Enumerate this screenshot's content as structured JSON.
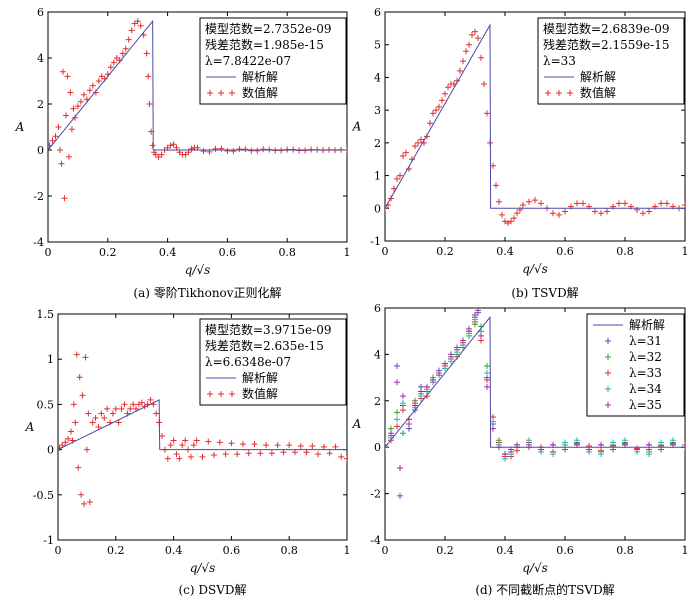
{
  "chart_data": [
    {
      "type": "line",
      "caption": "(a)  零阶Tikhonov正则化解",
      "xlabel": "q/√s",
      "ylabel": "A",
      "xlim": [
        0,
        1
      ],
      "ylim": [
        -4,
        6
      ],
      "xticks": [
        "0",
        "0.2",
        "0.4",
        "0.6",
        "0.8",
        "1"
      ],
      "yticks": [
        "-4",
        "-2",
        "0",
        "2",
        "4",
        "6"
      ],
      "legend": {
        "placement": "top-right",
        "text_lines": [
          "模型范数=2.7352e-09",
          "残差范数=1.985e-15",
          "λ=7.8422e-07"
        ],
        "entries": [
          {
            "label": "解析解",
            "marker": "line",
            "color": "#4a4aa8"
          },
          {
            "label": "数值解",
            "marker": "+",
            "color": "#e03030"
          }
        ]
      },
      "analytic": {
        "x": [
          0,
          0.35,
          0.352,
          1
        ],
        "y": [
          0,
          5.6,
          0,
          0
        ]
      },
      "numerical": {
        "x": [
          0.005,
          0.015,
          0.025,
          0.035,
          0.04,
          0.045,
          0.05,
          0.055,
          0.06,
          0.065,
          0.07,
          0.075,
          0.08,
          0.085,
          0.09,
          0.1,
          0.11,
          0.12,
          0.13,
          0.14,
          0.15,
          0.16,
          0.17,
          0.18,
          0.19,
          0.2,
          0.21,
          0.22,
          0.23,
          0.24,
          0.25,
          0.26,
          0.27,
          0.28,
          0.29,
          0.3,
          0.31,
          0.32,
          0.33,
          0.335,
          0.34,
          0.345,
          0.35,
          0.355,
          0.36,
          0.37,
          0.38,
          0.39,
          0.4,
          0.41,
          0.42,
          0.43,
          0.44,
          0.45,
          0.46,
          0.47,
          0.48,
          0.49,
          0.5,
          0.52,
          0.54,
          0.56,
          0.58,
          0.6,
          0.62,
          0.64,
          0.66,
          0.68,
          0.7,
          0.72,
          0.74,
          0.76,
          0.78,
          0.8,
          0.82,
          0.84,
          0.86,
          0.88,
          0.9,
          0.92,
          0.94,
          0.96,
          0.98,
          1.0
        ],
        "y": [
          0.2,
          0.4,
          0.6,
          1.0,
          0.0,
          -0.6,
          3.4,
          -2.1,
          1.5,
          3.2,
          -0.3,
          2.5,
          0.9,
          1.8,
          1.4,
          1.9,
          2.1,
          2.4,
          2.2,
          2.6,
          2.8,
          2.5,
          3.0,
          3.2,
          3.1,
          3.3,
          3.6,
          3.8,
          4.0,
          3.9,
          4.2,
          4.4,
          4.8,
          5.2,
          5.5,
          5.6,
          5.4,
          5.0,
          4.2,
          3.2,
          2.0,
          0.8,
          0.2,
          -0.1,
          -0.2,
          -0.3,
          -0.2,
          0.0,
          0.1,
          0.2,
          0.25,
          0.1,
          -0.1,
          -0.2,
          -0.2,
          -0.1,
          0.05,
          0.1,
          0.1,
          -0.05,
          -0.08,
          0.05,
          0.06,
          -0.04,
          -0.05,
          0.04,
          0.03,
          -0.03,
          -0.03,
          0.03,
          0.02,
          -0.02,
          -0.02,
          0.02,
          0.02,
          -0.02,
          -0.02,
          0.02,
          0.01,
          -0.01,
          0.01,
          -0.01,
          0.01,
          0.0
        ]
      }
    },
    {
      "type": "line",
      "caption": "(b)  TSVD解",
      "xlabel": "q/√s",
      "ylabel": "A",
      "xlim": [
        0,
        1
      ],
      "ylim": [
        -1,
        6
      ],
      "xticks": [
        "0",
        "0.2",
        "0.4",
        "0.6",
        "0.8",
        "1"
      ],
      "yticks": [
        "-1",
        "0",
        "1",
        "2",
        "3",
        "4",
        "5",
        "6"
      ],
      "legend": {
        "placement": "top-right",
        "text_lines": [
          "模型范数=2.6839e-09",
          "残差范数=2.1559e-15",
          "λ=33"
        ],
        "entries": [
          {
            "label": "解析解",
            "marker": "line",
            "color": "#4a4aa8"
          },
          {
            "label": "数值解",
            "marker": "+",
            "color": "#e03030"
          }
        ]
      },
      "analytic": {
        "x": [
          0,
          0.35,
          0.352,
          1
        ],
        "y": [
          0,
          5.6,
          0,
          0
        ]
      },
      "numerical": {
        "x": [
          0.0,
          0.01,
          0.02,
          0.03,
          0.04,
          0.05,
          0.06,
          0.07,
          0.08,
          0.09,
          0.1,
          0.11,
          0.12,
          0.13,
          0.14,
          0.15,
          0.16,
          0.17,
          0.18,
          0.19,
          0.2,
          0.21,
          0.22,
          0.23,
          0.24,
          0.25,
          0.26,
          0.27,
          0.28,
          0.29,
          0.3,
          0.31,
          0.32,
          0.33,
          0.34,
          0.35,
          0.36,
          0.37,
          0.38,
          0.39,
          0.4,
          0.41,
          0.42,
          0.43,
          0.44,
          0.45,
          0.46,
          0.48,
          0.5,
          0.52,
          0.54,
          0.56,
          0.58,
          0.6,
          0.62,
          0.64,
          0.66,
          0.68,
          0.7,
          0.72,
          0.74,
          0.76,
          0.78,
          0.8,
          0.82,
          0.84,
          0.86,
          0.88,
          0.9,
          0.92,
          0.94,
          0.96,
          0.98,
          1.0
        ],
        "y": [
          0.0,
          0.1,
          0.3,
          0.6,
          0.9,
          1.0,
          1.6,
          1.7,
          1.2,
          1.5,
          1.9,
          2.0,
          2.1,
          2.0,
          2.2,
          2.6,
          2.9,
          3.0,
          3.1,
          3.3,
          3.5,
          3.7,
          3.8,
          3.8,
          3.9,
          4.2,
          4.5,
          4.8,
          5.0,
          5.3,
          5.4,
          5.2,
          4.6,
          3.8,
          2.9,
          2.0,
          1.3,
          0.7,
          0.2,
          -0.2,
          -0.4,
          -0.45,
          -0.4,
          -0.3,
          -0.15,
          -0.05,
          0.1,
          0.2,
          0.25,
          0.15,
          0.0,
          -0.15,
          -0.2,
          -0.1,
          0.05,
          0.15,
          0.15,
          0.05,
          -0.1,
          -0.15,
          -0.1,
          0.05,
          0.15,
          0.15,
          0.05,
          -0.05,
          -0.15,
          -0.1,
          0.05,
          0.15,
          0.15,
          0.05,
          0.0,
          0.1
        ]
      }
    },
    {
      "type": "line",
      "caption": "(c)  DSVD解",
      "xlabel": "q/√s",
      "ylabel": "A",
      "xlim": [
        0,
        1
      ],
      "ylim": [
        -1,
        1.5
      ],
      "xticks": [
        "0",
        "0.2",
        "0.4",
        "0.6",
        "0.8",
        "1"
      ],
      "yticks": [
        "-1",
        "-0.5",
        "0",
        "0.5",
        "1",
        "1.5"
      ],
      "legend": {
        "placement": "top-right",
        "text_lines": [
          "模型范数=3.9715e-09",
          "残差范数=2.635e-15",
          "λ=6.6348e-07"
        ],
        "entries": [
          {
            "label": "解析解",
            "marker": "line",
            "color": "#4a4aa8"
          },
          {
            "label": "数值解",
            "marker": "+",
            "color": "#e03030"
          }
        ]
      },
      "analytic": {
        "x": [
          0,
          0.35,
          0.352,
          1
        ],
        "y": [
          0,
          0.55,
          0,
          0
        ]
      },
      "numerical": {
        "x": [
          0.005,
          0.015,
          0.025,
          0.035,
          0.045,
          0.05,
          0.055,
          0.06,
          0.065,
          0.07,
          0.075,
          0.08,
          0.085,
          0.09,
          0.095,
          0.1,
          0.105,
          0.11,
          0.12,
          0.13,
          0.14,
          0.15,
          0.16,
          0.17,
          0.18,
          0.19,
          0.2,
          0.21,
          0.22,
          0.23,
          0.24,
          0.25,
          0.26,
          0.27,
          0.28,
          0.29,
          0.3,
          0.31,
          0.32,
          0.33,
          0.34,
          0.35,
          0.36,
          0.37,
          0.38,
          0.39,
          0.4,
          0.41,
          0.42,
          0.43,
          0.44,
          0.45,
          0.46,
          0.47,
          0.48,
          0.5,
          0.52,
          0.54,
          0.56,
          0.58,
          0.6,
          0.62,
          0.64,
          0.66,
          0.68,
          0.7,
          0.72,
          0.74,
          0.76,
          0.78,
          0.8,
          0.82,
          0.84,
          0.86,
          0.88,
          0.9,
          0.92,
          0.94,
          0.96,
          0.98,
          1.0
        ],
        "y": [
          0.02,
          0.05,
          0.08,
          0.12,
          0.2,
          0.1,
          0.5,
          0.3,
          1.05,
          -0.2,
          0.8,
          -0.5,
          0.6,
          -0.6,
          1.02,
          0.0,
          0.4,
          -0.58,
          0.3,
          0.35,
          0.25,
          0.4,
          0.35,
          0.45,
          0.3,
          0.4,
          0.45,
          0.3,
          0.45,
          0.5,
          0.4,
          0.45,
          0.5,
          0.45,
          0.5,
          0.52,
          0.48,
          0.5,
          0.55,
          0.5,
          0.4,
          0.3,
          0.15,
          0.0,
          -0.1,
          0.05,
          0.1,
          -0.05,
          -0.1,
          0.05,
          0.1,
          0.0,
          -0.08,
          0.05,
          0.1,
          -0.08,
          0.09,
          -0.06,
          0.08,
          -0.05,
          0.07,
          -0.05,
          0.06,
          -0.04,
          0.06,
          -0.04,
          0.05,
          -0.04,
          0.05,
          -0.03,
          0.05,
          -0.03,
          0.04,
          -0.03,
          0.04,
          -0.05,
          0.03,
          -0.04,
          0.03,
          -0.08,
          -0.1
        ]
      }
    },
    {
      "type": "line",
      "caption": "(d)  不同截断点的TSVD解",
      "xlabel": "q/√s",
      "ylabel": "A",
      "xlim": [
        0,
        1
      ],
      "ylim": [
        -4,
        6
      ],
      "xticks": [
        "0",
        "0.2",
        "0.4",
        "0.6",
        "0.8",
        "1"
      ],
      "yticks": [
        "-4",
        "-2",
        "0",
        "2",
        "4",
        "6"
      ],
      "legend": {
        "placement": "top-right",
        "text_lines": [],
        "entries": [
          {
            "label": "解析解",
            "marker": "line",
            "color": "#4a4aa8"
          },
          {
            "label": "λ=31",
            "marker": "+",
            "color": "#5050c0"
          },
          {
            "label": "λ=32",
            "marker": "+",
            "color": "#30a030"
          },
          {
            "label": "λ=33",
            "marker": "+",
            "color": "#e03030"
          },
          {
            "label": "λ=34",
            "marker": "+",
            "color": "#30b0b0"
          },
          {
            "label": "λ=35",
            "marker": "+",
            "color": "#a030a0"
          }
        ]
      },
      "analytic": {
        "x": [
          0,
          0.35,
          0.352,
          1
        ],
        "y": [
          0,
          5.6,
          0,
          0
        ]
      },
      "series": [
        {
          "name": "λ=31",
          "color": "#5050c0",
          "x": [
            0.0,
            0.02,
            0.04,
            0.05,
            0.06,
            0.08,
            0.1,
            0.12,
            0.14,
            0.16,
            0.18,
            0.2,
            0.22,
            0.24,
            0.26,
            0.28,
            0.3,
            0.31,
            0.32,
            0.34,
            0.36,
            0.38,
            0.4,
            0.42,
            0.44,
            0.48,
            0.52,
            0.56,
            0.6,
            0.64,
            0.68,
            0.72,
            0.76,
            0.8,
            0.84,
            0.88,
            0.92,
            0.96,
            1.0
          ],
          "y": [
            0.0,
            0.5,
            3.5,
            -2.1,
            1.8,
            0.8,
            1.6,
            2.6,
            2.4,
            2.8,
            3.3,
            3.6,
            3.9,
            4.2,
            4.4,
            5.0,
            5.6,
            5.8,
            5.0,
            3.0,
            1.0,
            0.2,
            -0.3,
            -0.2,
            0.0,
            0.1,
            -0.1,
            0.1,
            -0.1,
            0.1,
            -0.1,
            0.1,
            -0.1,
            0.1,
            -0.1,
            0.1,
            -0.1,
            0.1,
            0.0
          ]
        },
        {
          "name": "λ=32",
          "color": "#30a030",
          "x": [
            0.0,
            0.02,
            0.04,
            0.06,
            0.08,
            0.1,
            0.12,
            0.14,
            0.16,
            0.18,
            0.2,
            0.22,
            0.24,
            0.26,
            0.28,
            0.3,
            0.32,
            0.34,
            0.36,
            0.38,
            0.4,
            0.42,
            0.44,
            0.48,
            0.52,
            0.56,
            0.6,
            0.64,
            0.68,
            0.72,
            0.76,
            0.8,
            0.84,
            0.88,
            0.92,
            0.96,
            1.0
          ],
          "y": [
            0.1,
            0.8,
            1.5,
            0.6,
            1.2,
            2.0,
            2.3,
            2.6,
            3.0,
            3.2,
            3.5,
            3.8,
            4.0,
            4.3,
            4.8,
            5.3,
            5.2,
            3.5,
            1.3,
            0.3,
            -0.4,
            -0.3,
            0.0,
            0.2,
            -0.1,
            -0.2,
            0.1,
            0.2,
            -0.1,
            -0.2,
            0.1,
            0.2,
            -0.1,
            -0.2,
            0.1,
            0.2,
            0.0
          ]
        },
        {
          "name": "λ=33",
          "color": "#e03030",
          "x": [
            0.0,
            0.02,
            0.04,
            0.06,
            0.08,
            0.1,
            0.12,
            0.14,
            0.16,
            0.18,
            0.2,
            0.22,
            0.24,
            0.26,
            0.28,
            0.3,
            0.32,
            0.34,
            0.36,
            0.38,
            0.4,
            0.42,
            0.44,
            0.48,
            0.52,
            0.56,
            0.6,
            0.64,
            0.68,
            0.72,
            0.76,
            0.8,
            0.84,
            0.88,
            0.92,
            0.96,
            1.0
          ],
          "y": [
            0.0,
            0.3,
            0.9,
            1.6,
            1.2,
            1.9,
            2.1,
            2.2,
            2.9,
            3.1,
            3.5,
            3.8,
            3.9,
            4.5,
            5.0,
            5.4,
            4.6,
            2.9,
            1.3,
            0.2,
            -0.4,
            -0.4,
            -0.15,
            0.2,
            0.0,
            -0.2,
            -0.1,
            0.15,
            0.05,
            -0.15,
            0.05,
            0.15,
            -0.05,
            -0.1,
            0.05,
            0.15,
            0.1
          ]
        },
        {
          "name": "λ=34",
          "color": "#30b0b0",
          "x": [
            0.0,
            0.02,
            0.04,
            0.06,
            0.08,
            0.1,
            0.12,
            0.14,
            0.16,
            0.18,
            0.2,
            0.22,
            0.24,
            0.26,
            0.28,
            0.3,
            0.32,
            0.34,
            0.36,
            0.38,
            0.4,
            0.42,
            0.44,
            0.48,
            0.52,
            0.56,
            0.6,
            0.64,
            0.68,
            0.72,
            0.76,
            0.8,
            0.84,
            0.88,
            0.92,
            0.96,
            1.0
          ],
          "y": [
            0.0,
            0.4,
            1.2,
            1.9,
            1.0,
            1.7,
            2.2,
            2.5,
            2.8,
            3.1,
            3.4,
            3.7,
            4.1,
            4.4,
            4.9,
            5.5,
            5.0,
            3.2,
            1.1,
            0.1,
            -0.5,
            -0.3,
            0.1,
            0.3,
            -0.2,
            -0.3,
            0.2,
            0.3,
            -0.2,
            -0.3,
            0.2,
            0.3,
            -0.2,
            -0.3,
            0.2,
            0.3,
            0.0
          ]
        },
        {
          "name": "λ=35",
          "color": "#a030a0",
          "x": [
            0.0,
            0.02,
            0.04,
            0.05,
            0.06,
            0.08,
            0.1,
            0.12,
            0.14,
            0.16,
            0.18,
            0.2,
            0.22,
            0.24,
            0.26,
            0.28,
            0.3,
            0.31,
            0.32,
            0.34,
            0.36,
            0.38,
            0.4,
            0.42,
            0.44,
            0.48,
            0.52,
            0.56,
            0.6,
            0.64,
            0.68,
            0.72,
            0.76,
            0.8,
            0.84,
            0.88,
            0.92,
            0.96,
            1.0
          ],
          "y": [
            0.0,
            0.6,
            2.8,
            -0.9,
            2.2,
            1.0,
            1.8,
            2.4,
            2.6,
            2.9,
            3.2,
            3.6,
            4.0,
            4.3,
            4.6,
            5.1,
            5.7,
            5.9,
            4.8,
            2.6,
            0.8,
            0.0,
            -0.3,
            -0.1,
            0.1,
            0.0,
            -0.1,
            0.1,
            -0.1,
            0.1,
            -0.1,
            0.1,
            -0.1,
            0.1,
            -0.1,
            0.1,
            -0.1,
            0.1,
            0.0
          ]
        }
      ]
    }
  ]
}
